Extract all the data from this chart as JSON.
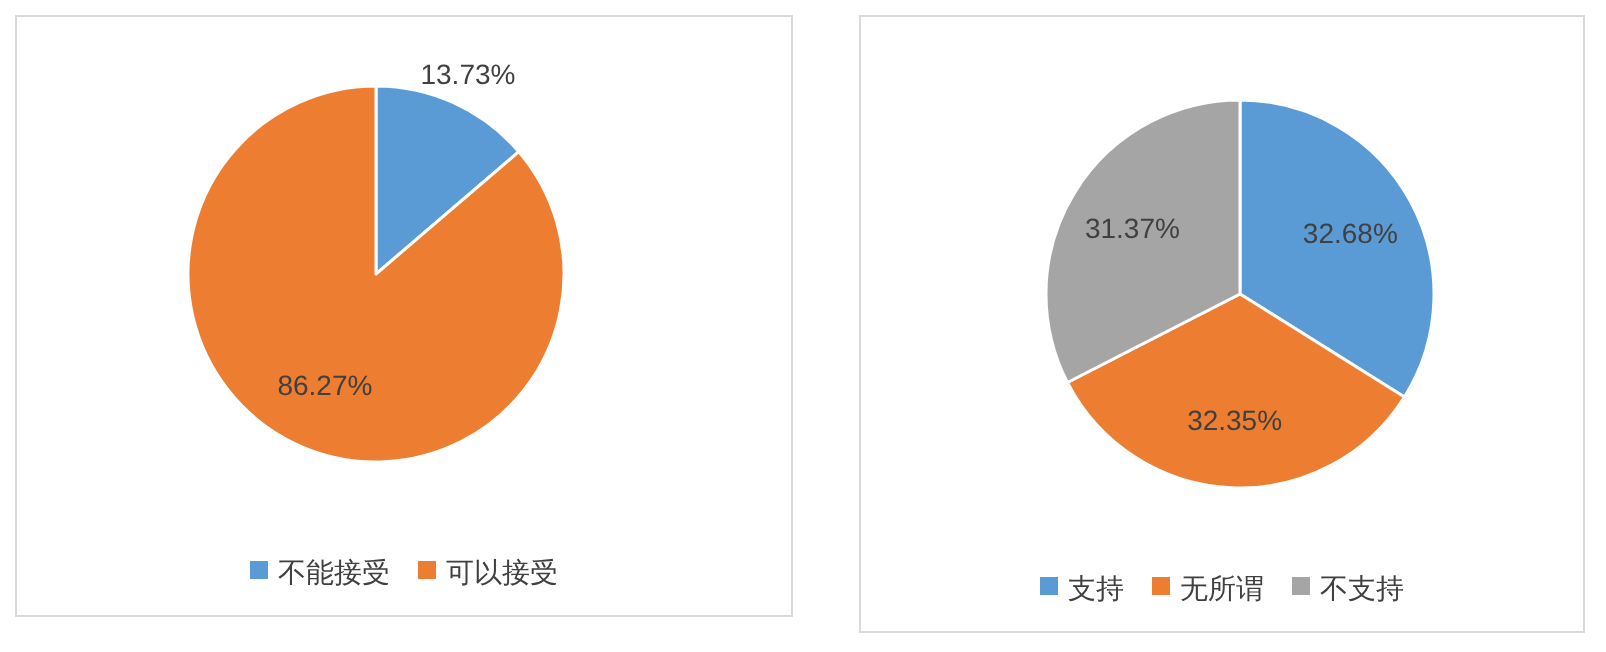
{
  "chart_data": [
    {
      "type": "pie",
      "categories": [
        "不能接受",
        "可以接受"
      ],
      "values": [
        13.73,
        86.27
      ],
      "value_labels": [
        "13.73%",
        "86.27%"
      ],
      "colors": [
        "#5b9bd5",
        "#ed7d31"
      ],
      "legend": "bottom"
    },
    {
      "type": "pie",
      "categories": [
        "支持",
        "无所谓",
        "不支持"
      ],
      "values": [
        32.68,
        32.35,
        31.37
      ],
      "value_labels": [
        "32.68%",
        "32.35%",
        "31.37%"
      ],
      "colors": [
        "#5b9bd5",
        "#ed7d31",
        "#a5a5a5"
      ],
      "legend": "bottom"
    }
  ]
}
